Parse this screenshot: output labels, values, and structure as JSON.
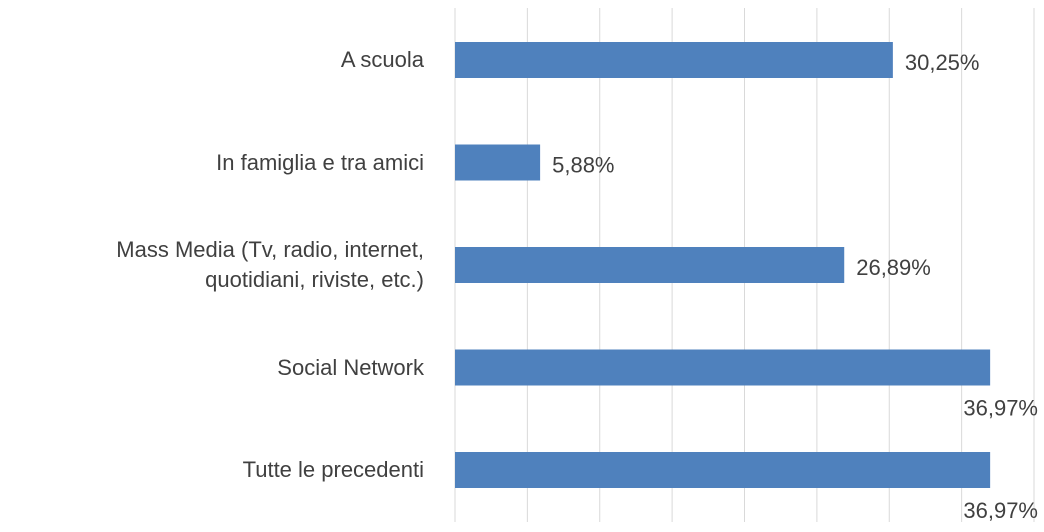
{
  "chart_data": {
    "type": "bar",
    "orientation": "horizontal",
    "categories": [
      "A scuola",
      "In famiglia e tra amici",
      "Mass Media (Tv, radio, internet,\nquotidiani, riviste, etc.)",
      "Social Network",
      "Tutte le precedenti"
    ],
    "values": [
      30.25,
      5.88,
      26.89,
      36.97,
      36.97
    ],
    "value_labels": [
      "30,25%",
      "5,88%",
      "26,89%",
      "36,97%",
      "36,97%"
    ],
    "color": "#4f81bd",
    "xlim": [
      0,
      40
    ],
    "xticks": [
      0,
      5,
      10,
      15,
      20,
      25,
      30,
      35,
      40
    ],
    "grid": true
  }
}
